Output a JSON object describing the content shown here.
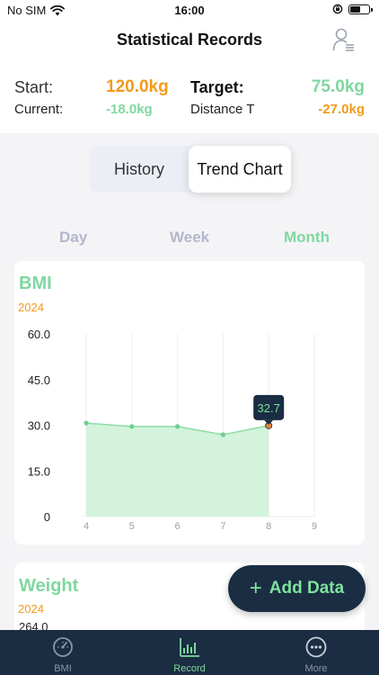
{
  "status_bar": {
    "carrier": "No SIM",
    "time": "16:00"
  },
  "header": {
    "title": "Statistical Records",
    "profile_icon": "user-list-icon"
  },
  "summary": {
    "start_label": "Start:",
    "start_value": "120.0kg",
    "target_label": "Target:",
    "target_value": "75.0kg",
    "current_label": "Current:",
    "current_value": "-18.0kg",
    "distance_label": "Distance T",
    "distance_value": "-27.0kg"
  },
  "segmented": {
    "tabs": [
      "History",
      "Trend Chart"
    ],
    "active": 1
  },
  "periods": {
    "items": [
      "Day",
      "Week",
      "Month"
    ],
    "active": 2
  },
  "chart_data": [
    {
      "type": "area",
      "title": "BMI",
      "subtitle": "2024",
      "x": [
        4,
        5,
        6,
        7,
        8
      ],
      "x_ticks": [
        4,
        5,
        6,
        7,
        8,
        9
      ],
      "values": [
        30.7,
        29.6,
        29.6,
        26.9,
        29.9
      ],
      "y_ticks": [
        "60.0",
        "45.0",
        "30.0",
        "15.0",
        "0"
      ],
      "ylim": [
        0,
        60
      ],
      "xlim": [
        4,
        9
      ],
      "tooltip": "32.7",
      "grid": true
    },
    {
      "type": "area",
      "title": "Weight",
      "subtitle": "2024",
      "y_top_tick": "264.0"
    }
  ],
  "fab": {
    "label": "Add Data",
    "icon": "plus-icon"
  },
  "tab_bar": {
    "items": [
      {
        "label": "BMI",
        "icon": "gauge-icon"
      },
      {
        "label": "Record",
        "icon": "bar-chart-icon"
      },
      {
        "label": "More",
        "icon": "more-icon"
      }
    ],
    "active": 1
  },
  "colors": {
    "orange": "#f29a1c",
    "green": "#7fd7a0",
    "navy": "#1a2d42",
    "area_fill": "#d3f3dc",
    "line": "#8fdba5"
  }
}
